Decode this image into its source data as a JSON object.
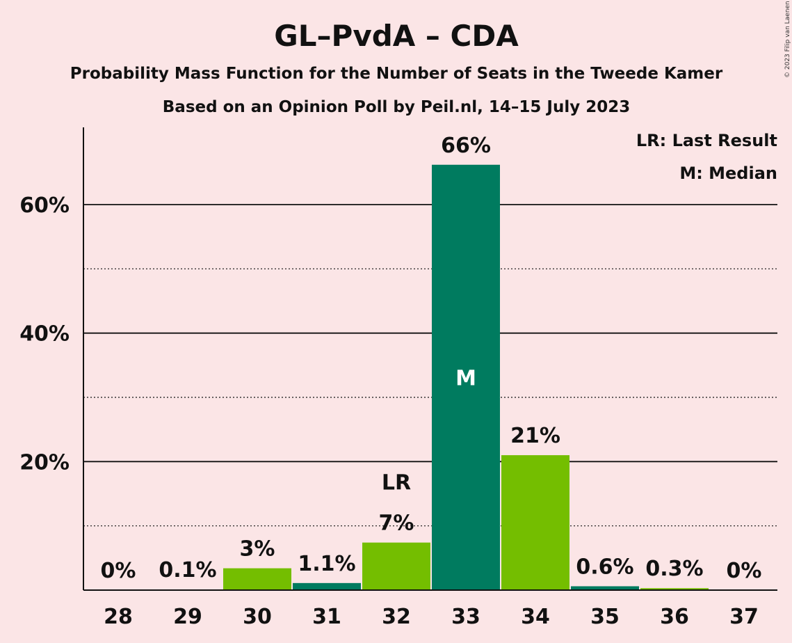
{
  "title": "GL–PvdA – CDA",
  "subtitle1": "Probability Mass Function for the Number of Seats in the Tweede Kamer",
  "subtitle2": "Based on an Opinion Poll by Peil.nl, 14–15 July 2023",
  "copyright": "© 2023 Filip van Laenen",
  "legend": {
    "lr": "LR: Last Result",
    "m": "M: Median"
  },
  "colors": {
    "background": "#FBE5E6",
    "dark_green": "#007B5F",
    "light_green": "#74BE00"
  },
  "chart_data": {
    "type": "bar",
    "categories": [
      "28",
      "29",
      "30",
      "31",
      "32",
      "33",
      "34",
      "35",
      "36",
      "37"
    ],
    "values": [
      0,
      0.1,
      3.4,
      1.1,
      7.4,
      66.2,
      21.0,
      0.6,
      0.3,
      0
    ],
    "labels": [
      "0%",
      "0.1%",
      "3%",
      "1.1%",
      "7%",
      "66%",
      "21%",
      "0.6%",
      "0.3%",
      "0%"
    ],
    "bar_colors": [
      "#74BE00",
      "#007B5F",
      "#74BE00",
      "#007B5F",
      "#74BE00",
      "#007B5F",
      "#74BE00",
      "#007B5F",
      "#74BE00",
      "#007B5F"
    ],
    "ylim": [
      0,
      72
    ],
    "yticks": [
      20,
      40,
      60
    ],
    "ytick_labels": [
      "20%",
      "40%",
      "60%"
    ],
    "minor_gridlines": [
      10,
      30,
      50
    ],
    "last_result": {
      "category": "32",
      "label": "LR"
    },
    "median": {
      "category": "33",
      "label": "M"
    }
  }
}
